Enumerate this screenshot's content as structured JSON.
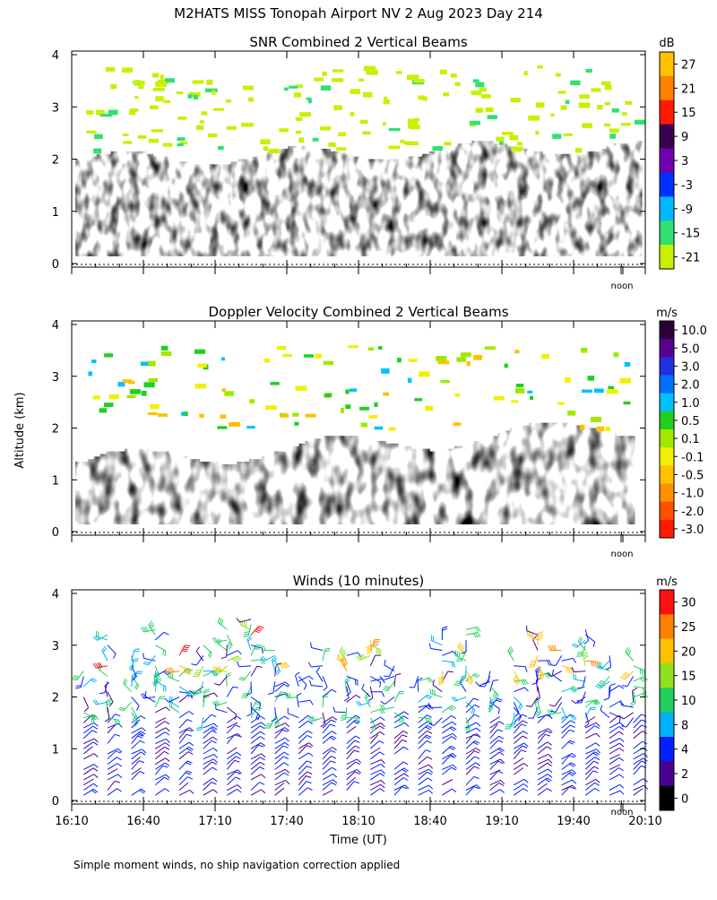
{
  "figure": {
    "title": "M2HATS MISS Tonopah Airport NV    2 Aug 2023 Day 214",
    "ylabel": "Altitude (km)",
    "xlabel": "Time (UT)",
    "footnote": "Simple moment winds, no ship navigation correction applied",
    "noon_label": "noon"
  },
  "chart_data": [
    {
      "type": "heatmap",
      "title": "SNR Combined 2 Vertical Beams",
      "xlabel": "Time (UT)",
      "ylabel": "Altitude (km)",
      "xlim": [
        "16:10",
        "20:10"
      ],
      "ylim": [
        0,
        4
      ],
      "yticks": [
        "0",
        "1",
        "2",
        "3",
        "4"
      ],
      "colorbar": {
        "unit": "dB",
        "labels": [
          "27",
          "21",
          "15",
          "9",
          "3",
          "-3",
          "-9",
          "-15",
          "-21"
        ],
        "colors": [
          "#ffc000",
          "#ff8000",
          "#ff1a00",
          "#3c0050",
          "#7000b0",
          "#0030ff",
          "#00b8ff",
          "#30e070",
          "#c8f000"
        ]
      },
      "description_levels": {
        "surface_layer_max_dB": 9,
        "upper_layer_min_dB": -21
      }
    },
    {
      "type": "heatmap",
      "title": "Doppler Velocity Combined 2 Vertical Beams",
      "xlabel": "Time (UT)",
      "ylabel": "Altitude (km)",
      "xlim": [
        "16:10",
        "20:10"
      ],
      "ylim": [
        0,
        4
      ],
      "yticks": [
        "0",
        "1",
        "2",
        "3",
        "4"
      ],
      "colorbar": {
        "unit": "m/s",
        "labels": [
          "10.0",
          "5.0",
          "3.0",
          "2.0",
          "1.0",
          "0.5",
          "0.1",
          "-0.1",
          "-0.5",
          "-1.0",
          "-2.0",
          "-3.0"
        ],
        "colors": [
          "#2a0038",
          "#5a0090",
          "#2030e0",
          "#0070ff",
          "#00c0ff",
          "#20d020",
          "#a0e800",
          "#f0f000",
          "#ffc000",
          "#ff9000",
          "#ff5000",
          "#ff1a00"
        ]
      }
    },
    {
      "type": "scatter",
      "title": "Winds (10 minutes)",
      "xlabel": "Time (UT)",
      "ylabel": "Altitude (km)",
      "xlim": [
        "16:10",
        "20:10"
      ],
      "ylim": [
        0,
        4
      ],
      "xticks": [
        "16:10",
        "16:40",
        "17:10",
        "17:40",
        "18:10",
        "18:40",
        "19:10",
        "19:40",
        "20:10"
      ],
      "yticks": [
        "0",
        "1",
        "2",
        "3",
        "4"
      ],
      "colorbar": {
        "unit": "m/s",
        "labels": [
          "30",
          "25",
          "20",
          "15",
          "10",
          "8",
          "4",
          "2",
          "0"
        ],
        "colors": [
          "#ff1010",
          "#ff8000",
          "#ffc000",
          "#90e020",
          "#20d060",
          "#00b0ff",
          "#0020ff",
          "#4a0090",
          "#000000"
        ]
      },
      "profile_times_min": [
        5,
        15,
        25,
        35,
        45,
        55,
        65,
        75,
        85,
        95,
        105,
        115,
        125,
        135,
        145,
        155,
        165,
        175,
        185,
        195,
        205,
        215,
        225,
        235
      ]
    }
  ]
}
